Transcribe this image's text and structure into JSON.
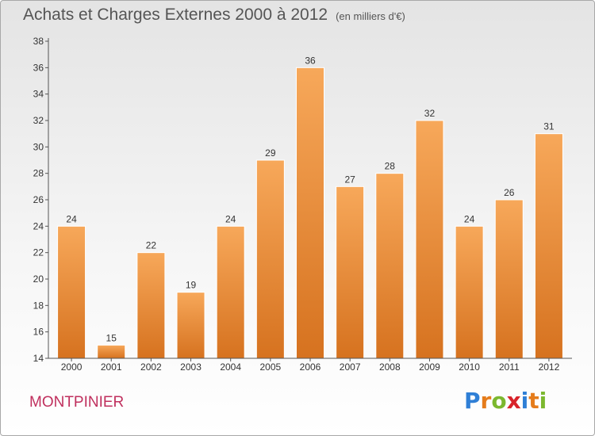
{
  "header": {
    "title": "Achats et Charges Externes 2000 à 2012",
    "subtitle": "(en milliers d'€)"
  },
  "footer": {
    "commune": "MONTPINIER",
    "brand_letters": [
      "P",
      "r",
      "o",
      "x",
      "i",
      "t",
      "i"
    ],
    "brand_colors": [
      "#2f7fd6",
      "#e57c1b",
      "#7cb82f",
      "#d8232a",
      "#2f7fd6",
      "#e57c1b",
      "#7cb82f"
    ]
  },
  "colors": {
    "bar_top": "#f7a85a",
    "bar_bottom": "#d6721f",
    "axis": "#555555",
    "text": "#333333"
  },
  "chart_data": {
    "type": "bar",
    "categories": [
      "2000",
      "2001",
      "2002",
      "2003",
      "2004",
      "2005",
      "2006",
      "2007",
      "2008",
      "2009",
      "2010",
      "2011",
      "2012"
    ],
    "values": [
      24,
      15,
      22,
      19,
      24,
      29,
      36,
      27,
      28,
      32,
      24,
      26,
      31
    ],
    "ylim": [
      14,
      38
    ],
    "yticks": [
      14,
      16,
      18,
      20,
      22,
      24,
      26,
      28,
      30,
      32,
      34,
      36,
      38
    ],
    "grid": false,
    "legend": "none"
  }
}
